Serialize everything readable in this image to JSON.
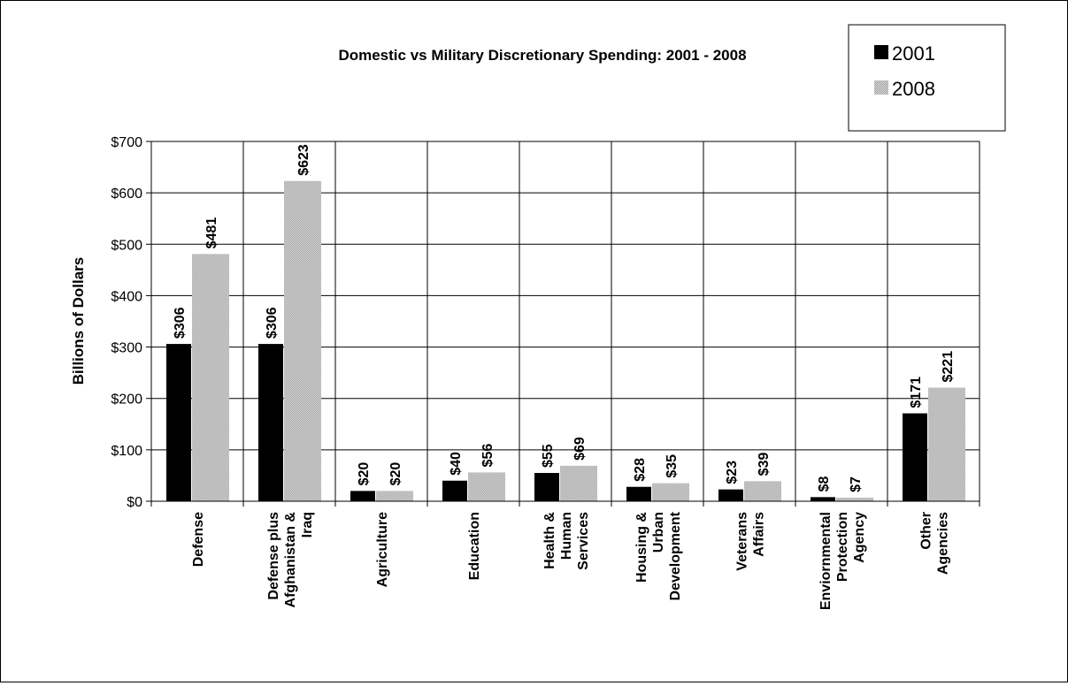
{
  "chart_data": {
    "type": "bar",
    "title": "Domestic vs Military Discretionary Spending: 2001 - 2008",
    "ylabel": "Billions of Dollars",
    "xlabel": "",
    "ylim": [
      0,
      700
    ],
    "yticks": [
      0,
      100,
      200,
      300,
      400,
      500,
      600,
      700
    ],
    "ytick_labels": [
      "$0",
      "$100",
      "$200",
      "$300",
      "$400",
      "$500",
      "$600",
      "$700"
    ],
    "grid": true,
    "legend_position": "top-right",
    "categories": [
      "Defense",
      "Defense plus Afghanistan & Iraq",
      "Agriculture",
      "Education",
      "Health & Human Services",
      "Housing & Urban Development",
      "Veterans Affairs",
      "Enviornmental Protection Agency",
      "Other Agencies"
    ],
    "category_lines": [
      [
        "Defense"
      ],
      [
        "Defense plus",
        "Afghanistan &",
        "Iraq"
      ],
      [
        "Agriculture"
      ],
      [
        "Education"
      ],
      [
        "Health &",
        "Human",
        "Services"
      ],
      [
        "Housing &",
        "Urban",
        "Development"
      ],
      [
        "Veterans",
        "Affairs"
      ],
      [
        "Enviornmental",
        "Protection",
        "Agency"
      ],
      [
        "Other",
        "Agencies"
      ]
    ],
    "series": [
      {
        "name": "2001",
        "color": "#000000",
        "values": [
          306,
          306,
          20,
          40,
          55,
          28,
          23,
          8,
          171
        ],
        "labels": [
          "$306",
          "$306",
          "$20",
          "$40",
          "$55",
          "$28",
          "$23",
          "$8",
          "$171"
        ]
      },
      {
        "name": "2008",
        "color": "#c0c0c0",
        "values": [
          481,
          623,
          20,
          56,
          69,
          35,
          39,
          7,
          221
        ],
        "labels": [
          "$481",
          "$623",
          "$20",
          "$56",
          "$69",
          "$35",
          "$39",
          "$7",
          "$221"
        ]
      }
    ]
  }
}
